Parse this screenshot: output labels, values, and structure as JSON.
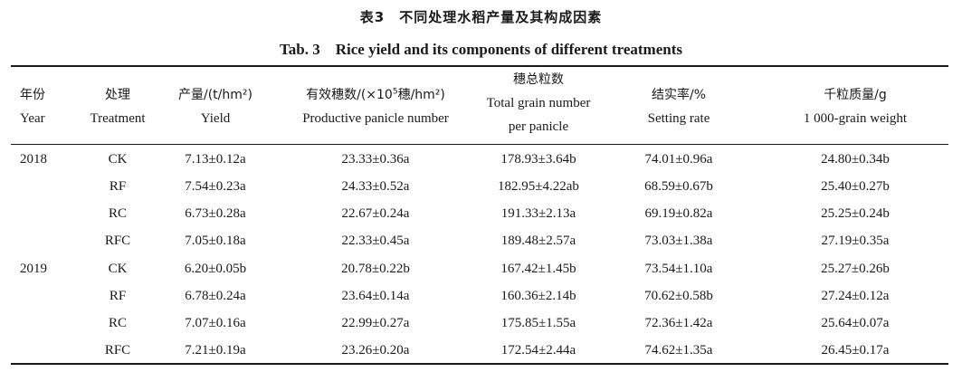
{
  "caption": {
    "cn": "表3　不同处理水稻产量及其构成因素",
    "en": "Tab. 3　Rice yield and its components of different treatments"
  },
  "headers": {
    "year": {
      "cn": "年份",
      "en": "Year"
    },
    "treatment": {
      "cn": "处理",
      "en": "Treatment"
    },
    "yield": {
      "cn": "产量/(t/hm²)",
      "en": "Yield"
    },
    "ppn": {
      "cn_pre": "有效穗数/(×10",
      "cn_sup": "5",
      "cn_post": "穗/hm²)",
      "en": "Productive panicle number"
    },
    "tgn": {
      "cn": "穗总粒数",
      "en1": "Total grain number",
      "en2": "per panicle"
    },
    "sr": {
      "cn": "结实率/%",
      "en": "Setting rate"
    },
    "kgw": {
      "cn": "千粒质量/g",
      "en": "1 000-grain weight"
    }
  },
  "rows": [
    {
      "year": "2018",
      "treatment": "CK",
      "yield": "7.13±0.12a",
      "ppn": "23.33±0.36a",
      "tgn": "178.93±3.64b",
      "sr": "74.01±0.96a",
      "kgw": "24.80±0.34b"
    },
    {
      "year": "",
      "treatment": "RF",
      "yield": "7.54±0.23a",
      "ppn": "24.33±0.52a",
      "tgn": "182.95±4.22ab",
      "sr": "68.59±0.67b",
      "kgw": "25.40±0.27b"
    },
    {
      "year": "",
      "treatment": "RC",
      "yield": "6.73±0.28a",
      "ppn": "22.67±0.24a",
      "tgn": "191.33±2.13a",
      "sr": "69.19±0.82a",
      "kgw": "25.25±0.24b"
    },
    {
      "year": "",
      "treatment": "RFC",
      "yield": "7.05±0.18a",
      "ppn": "22.33±0.45a",
      "tgn": "189.48±2.57a",
      "sr": "73.03±1.38a",
      "kgw": "27.19±0.35a"
    },
    {
      "year": "2019",
      "treatment": "CK",
      "yield": "6.20±0.05b",
      "ppn": "20.78±0.22b",
      "tgn": "167.42±1.45b",
      "sr": "73.54±1.10a",
      "kgw": "25.27±0.26b"
    },
    {
      "year": "",
      "treatment": "RF",
      "yield": "6.78±0.24a",
      "ppn": "23.64±0.14a",
      "tgn": "160.36±2.14b",
      "sr": "70.62±0.58b",
      "kgw": "27.24±0.12a"
    },
    {
      "year": "",
      "treatment": "RC",
      "yield": "7.07±0.16a",
      "ppn": "22.99±0.27a",
      "tgn": "175.85±1.55a",
      "sr": "72.36±1.42a",
      "kgw": "25.64±0.07a"
    },
    {
      "year": "",
      "treatment": "RFC",
      "yield": "7.21±0.19a",
      "ppn": "23.26±0.20a",
      "tgn": "172.54±2.44a",
      "sr": "74.62±1.35a",
      "kgw": "26.45±0.17a"
    }
  ]
}
